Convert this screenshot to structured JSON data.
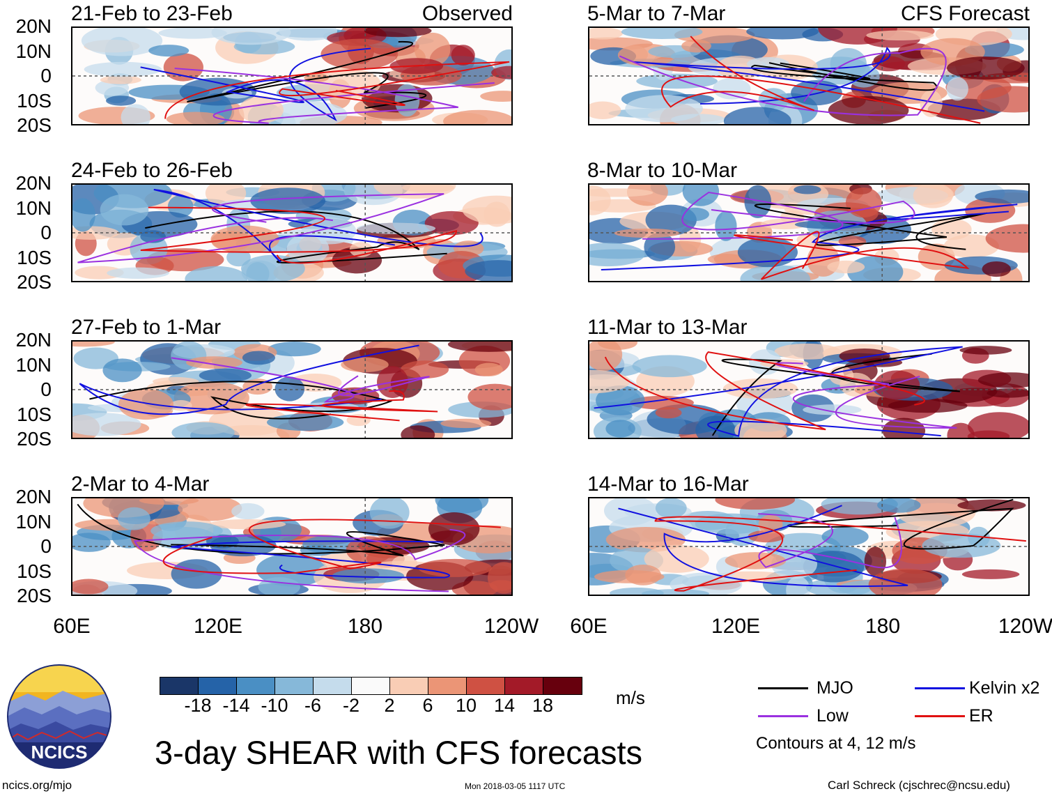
{
  "panels": {
    "left": [
      {
        "title": "21-Feb to 23-Feb",
        "label": "Observed"
      },
      {
        "title": "24-Feb to 26-Feb",
        "label": ""
      },
      {
        "title": "27-Feb to 1-Mar",
        "label": ""
      },
      {
        "title": "2-Mar to 4-Mar",
        "label": ""
      }
    ],
    "right": [
      {
        "title": "5-Mar to 7-Mar",
        "label": "CFS Forecast"
      },
      {
        "title": "8-Mar to 10-Mar",
        "label": ""
      },
      {
        "title": "11-Mar to 13-Mar",
        "label": ""
      },
      {
        "title": "14-Mar to 16-Mar",
        "label": ""
      }
    ]
  },
  "y_axis": {
    "labels": [
      "20N",
      "10N",
      "0",
      "10S",
      "20S"
    ]
  },
  "x_axis": {
    "labels": [
      "60E",
      "120E",
      "180",
      "120W"
    ]
  },
  "colorbar": {
    "tick_labels": [
      "-18",
      "-14",
      "-10",
      "-6",
      "-2",
      "2",
      "6",
      "10",
      "14",
      "18"
    ],
    "colors": [
      "#1a3668",
      "#2563a8",
      "#4a8fc4",
      "#86b8d9",
      "#c5dcec",
      "#fafafa",
      "#f9cdb5",
      "#eb9576",
      "#cf5143",
      "#a31a28",
      "#67000d"
    ],
    "units": "m/s"
  },
  "title": "3-day SHEAR with CFS forecasts",
  "legend": {
    "items": [
      {
        "label": "MJO",
        "color": "#000000"
      },
      {
        "label": "Kelvin x2",
        "color": "#1010e0"
      },
      {
        "label": "Low",
        "color": "#9a30e0"
      },
      {
        "label": "ER",
        "color": "#e01010"
      }
    ],
    "note": "Contours at 4, 12 m/s"
  },
  "footer": {
    "website": "ncics.org/mjo",
    "timestamp": "Mon 2018-03-05 1117 UTC",
    "author": "Carl Schreck (cjschrec@ncsu.edu)"
  },
  "logo": {
    "text": "NCICS"
  }
}
